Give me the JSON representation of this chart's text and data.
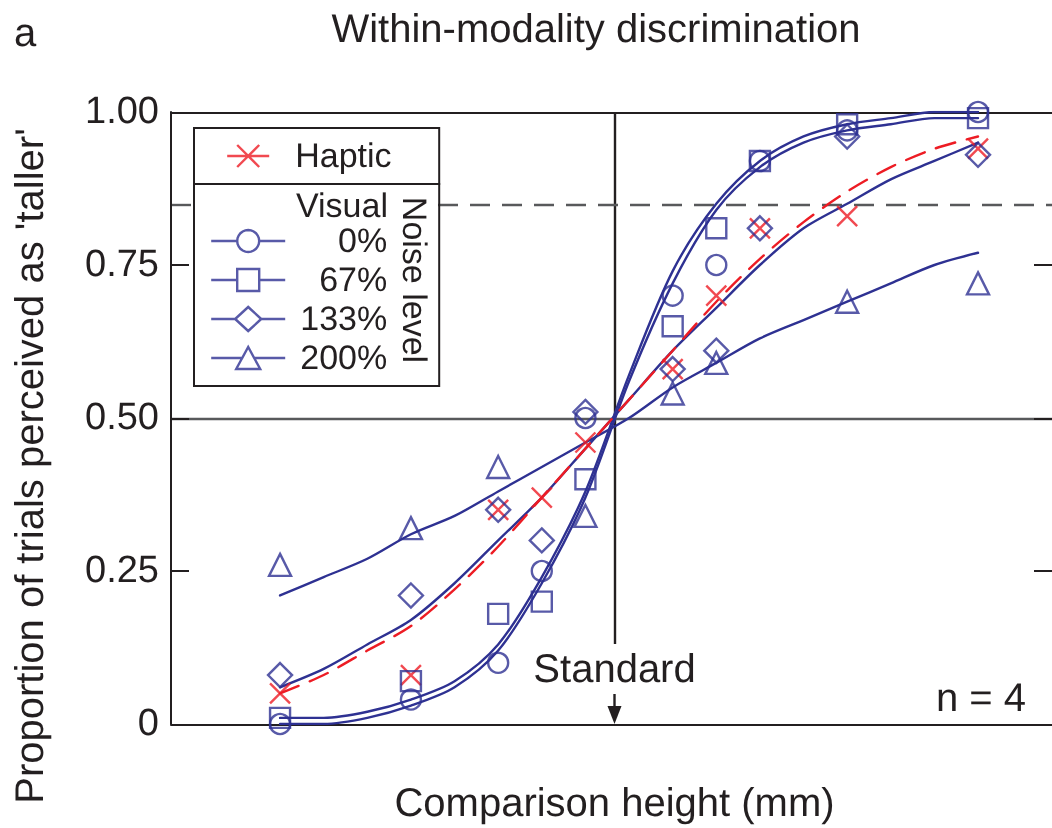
{
  "chart_data": {
    "type": "scatter",
    "title": "Within-modality discrimination",
    "xlabel": "Comparison height (mm)",
    "ylabel": "Proportion of trials perceived as 'taller'",
    "legend_title": "Noise level",
    "annotations": [
      "a",
      "Visual",
      "n = 4"
    ],
    "categories": [
      null,
      null,
      null,
      null,
      null,
      null,
      null,
      null,
      null,
      null,
      null,
      null,
      null,
      null,
      null,
      null,
      null,
      null,
      null,
      null,
      null,
      null,
      null,
      null,
      null,
      null,
      null,
      null,
      null,
      null,
      "Standard",
      null,
      null,
      null,
      null,
      null,
      null,
      null,
      null,
      null,
      null,
      null,
      null,
      null,
      null,
      null,
      null,
      null,
      null,
      null,
      null,
      null,
      null,
      null,
      null,
      null,
      null,
      null,
      null,
      null,
      null
    ],
    "series": [
      {
        "name": "Haptic",
        "color": "#ed1c24",
        "marker": "cross",
        "values": [
          null,
          null,
          null,
          null,
          null,
          null,
          null,
          0.05,
          null,
          null,
          null,
          null,
          null,
          null,
          null,
          null,
          0.08,
          null,
          null,
          null,
          null,
          null,
          0.35,
          null,
          null,
          0.37,
          null,
          null,
          0.46,
          null,
          null,
          null,
          null,
          null,
          0.58,
          null,
          null,
          0.7,
          null,
          null,
          0.81,
          null,
          null,
          null,
          null,
          null,
          0.83,
          null,
          null,
          null,
          null,
          null,
          null,
          null,
          null,
          0.94,
          null,
          null,
          null,
          null,
          null
        ]
      },
      {
        "type": "line",
        "color": "#ed1c24",
        "line_style": "dashed",
        "values": [
          null,
          null,
          null,
          null,
          null,
          null,
          null,
          0.05,
          null,
          null,
          0.08,
          null,
          null,
          0.12,
          null,
          null,
          0.16,
          null,
          null,
          0.22,
          null,
          null,
          0.29,
          null,
          null,
          0.37,
          null,
          null,
          0.45,
          null,
          null,
          0.53,
          null,
          null,
          0.61,
          null,
          null,
          0.69,
          null,
          null,
          0.76,
          null,
          null,
          0.82,
          null,
          null,
          0.87,
          null,
          null,
          0.91,
          null,
          null,
          0.94,
          null,
          null,
          0.96,
          null,
          null,
          null,
          null,
          null
        ]
      },
      {
        "name": "0%",
        "color": "#2e3192",
        "marker": "circle",
        "values": [
          null,
          null,
          null,
          null,
          null,
          null,
          null,
          0,
          null,
          null,
          null,
          null,
          null,
          null,
          null,
          null,
          0.04,
          null,
          null,
          null,
          null,
          null,
          0.1,
          null,
          null,
          0.25,
          null,
          null,
          0.5,
          null,
          null,
          null,
          null,
          null,
          0.7,
          null,
          null,
          0.75,
          null,
          null,
          0.92,
          null,
          null,
          null,
          null,
          null,
          0.97,
          null,
          null,
          null,
          null,
          null,
          null,
          null,
          null,
          1.0,
          null,
          null,
          null,
          null,
          null
        ]
      },
      {
        "type": "line",
        "color": "#2e3192",
        "line_style": "solid",
        "values": [
          null,
          null,
          null,
          null,
          null,
          null,
          null,
          0,
          null,
          null,
          0,
          null,
          null,
          0.01,
          null,
          null,
          0.03,
          null,
          null,
          0.06,
          null,
          null,
          0.12,
          null,
          null,
          0.23,
          null,
          null,
          0.37,
          null,
          null,
          0.56,
          null,
          null,
          0.72,
          null,
          null,
          0.84,
          null,
          null,
          0.91,
          null,
          null,
          0.95,
          null,
          null,
          0.97,
          null,
          null,
          0.98,
          null,
          null,
          0.99,
          null,
          null,
          0.99,
          null,
          null,
          null,
          null,
          null
        ]
      },
      {
        "name": "67%",
        "color": "#2e3192",
        "marker": "square",
        "values": [
          null,
          null,
          null,
          null,
          null,
          null,
          null,
          0.01,
          null,
          null,
          null,
          null,
          null,
          null,
          null,
          null,
          0.07,
          null,
          null,
          null,
          null,
          null,
          0.18,
          null,
          null,
          0.2,
          null,
          null,
          0.4,
          null,
          null,
          null,
          null,
          null,
          0.65,
          null,
          null,
          0.81,
          null,
          null,
          0.92,
          null,
          null,
          null,
          null,
          null,
          0.98,
          null,
          null,
          null,
          null,
          null,
          null,
          null,
          null,
          0.99,
          null,
          null,
          null,
          null,
          null
        ]
      },
      {
        "type": "line",
        "color": "#2e3192",
        "line_style": "solid",
        "values": [
          null,
          null,
          null,
          null,
          null,
          null,
          null,
          0.01,
          null,
          null,
          0.01,
          null,
          null,
          0.02,
          null,
          null,
          0.04,
          null,
          null,
          0.07,
          null,
          null,
          0.13,
          null,
          null,
          0.24,
          null,
          null,
          0.38,
          null,
          null,
          0.57,
          null,
          null,
          0.74,
          null,
          null,
          0.85,
          null,
          null,
          0.92,
          null,
          null,
          0.96,
          null,
          null,
          0.98,
          null,
          null,
          0.99,
          null,
          null,
          1.0,
          null,
          null,
          1.0,
          null,
          null,
          null,
          null,
          null
        ]
      },
      {
        "name": "133%",
        "color": "#2e3192",
        "marker": "diamond",
        "values": [
          null,
          null,
          null,
          null,
          null,
          null,
          null,
          0.08,
          null,
          null,
          null,
          null,
          null,
          null,
          null,
          null,
          0.21,
          null,
          null,
          null,
          null,
          null,
          0.35,
          null,
          null,
          0.3,
          null,
          null,
          0.51,
          null,
          null,
          null,
          null,
          null,
          0.58,
          null,
          null,
          0.61,
          null,
          null,
          0.81,
          null,
          null,
          null,
          null,
          null,
          0.96,
          null,
          null,
          null,
          null,
          null,
          null,
          null,
          null,
          0.93,
          null,
          null,
          null,
          null,
          null
        ]
      },
      {
        "type": "line",
        "color": "#2e3192",
        "line_style": "solid",
        "values": [
          null,
          null,
          null,
          null,
          null,
          null,
          null,
          0.06,
          null,
          null,
          0.09,
          null,
          null,
          0.13,
          null,
          null,
          0.17,
          null,
          null,
          0.23,
          null,
          null,
          0.3,
          null,
          null,
          0.37,
          null,
          null,
          0.45,
          null,
          null,
          0.53,
          null,
          null,
          0.61,
          null,
          null,
          0.68,
          null,
          null,
          0.75,
          null,
          null,
          0.81,
          null,
          null,
          0.85,
          null,
          null,
          0.89,
          null,
          null,
          0.92,
          null,
          null,
          0.95,
          null,
          null,
          null,
          null,
          null
        ]
      },
      {
        "name": "200%",
        "color": "#2e3192",
        "marker": "triangle",
        "values": [
          null,
          null,
          null,
          null,
          null,
          null,
          null,
          0.26,
          null,
          null,
          null,
          null,
          null,
          null,
          null,
          null,
          0.32,
          null,
          null,
          null,
          null,
          null,
          0.42,
          null,
          null,
          null,
          null,
          null,
          0.34,
          null,
          null,
          null,
          null,
          null,
          0.54,
          null,
          null,
          0.59,
          null,
          null,
          null,
          null,
          null,
          null,
          null,
          null,
          0.69,
          null,
          null,
          null,
          null,
          null,
          null,
          null,
          null,
          0.72,
          null,
          null,
          null,
          null,
          null
        ]
      },
      {
        "type": "line",
        "color": "#2e3192",
        "line_style": "solid",
        "values": [
          null,
          null,
          null,
          null,
          null,
          null,
          null,
          0.21,
          null,
          null,
          0.24,
          null,
          null,
          0.27,
          null,
          null,
          0.31,
          null,
          null,
          0.34,
          null,
          null,
          0.38,
          null,
          null,
          0.42,
          null,
          null,
          0.46,
          null,
          null,
          0.5,
          null,
          null,
          0.55,
          null,
          null,
          0.59,
          null,
          null,
          0.63,
          null,
          null,
          0.66,
          null,
          null,
          0.69,
          null,
          null,
          0.72,
          null,
          null,
          0.75,
          null,
          null,
          0.77,
          null,
          null,
          null,
          null,
          null
        ]
      }
    ],
    "ylim": [
      0,
      1
    ],
    "yticks": [
      0,
      0.25,
      {
        "value": 0.5,
        "label": "0.50"
      },
      0.75,
      {
        "value": 1,
        "label": "1.00"
      }
    ],
    "legend": "top left",
    "ref_lines": [
      {
        "axis": "x",
        "value": "Standard",
        "color": "#231f20"
      },
      {
        "axis": "y",
        "value": 0.5,
        "color": "#58595b"
      },
      {
        "axis": "y",
        "value": 0.85,
        "color": "#58595b",
        "line_style": "dashed"
      }
    ]
  }
}
